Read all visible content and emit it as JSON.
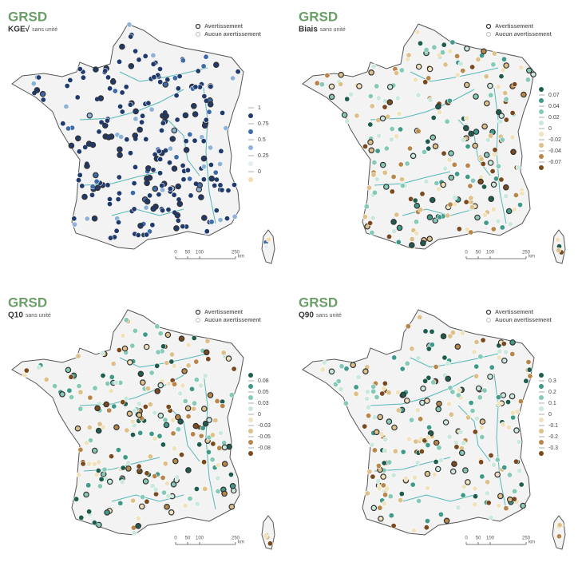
{
  "panels": [
    {
      "title": "GRSD",
      "metric": "KGE√",
      "unit": "sans unité",
      "legend": {
        "warning": "Avertissement",
        "no_warning": "Aucun avertissement"
      },
      "colorbar": {
        "ticks": [
          "1",
          "0.75",
          "0.5",
          "0.25",
          "0"
        ],
        "colors": [
          "#1f3a6b",
          "#3e6aa8",
          "#8fb3d6",
          "#e4edf2",
          "#f6dcac"
        ]
      },
      "scale": {
        "ticks": [
          "0",
          "50",
          "100",
          "250"
        ],
        "unit": "km"
      }
    },
    {
      "title": "GRSD",
      "metric": "Biais",
      "unit": "sans unité",
      "legend": {
        "warning": "Avertissement",
        "no_warning": "Aucun avertissement"
      },
      "colorbar": {
        "ticks": [
          "0.07",
          "0.04",
          "0.02",
          "0",
          "-0.02",
          "-0.04",
          "-0.07"
        ],
        "colors": [
          "#1d5c4e",
          "#3f9a8a",
          "#86c9b8",
          "#cbe8dd",
          "#f0e2bd",
          "#ddc08a",
          "#b8864b",
          "#7a4a1e"
        ]
      },
      "scale": {
        "ticks": [
          "0",
          "50",
          "100",
          "250"
        ],
        "unit": "km"
      }
    },
    {
      "title": "GRSD",
      "metric": "Q10",
      "unit": "sans unité",
      "legend": {
        "warning": "Avertissement",
        "no_warning": "Aucun avertissement"
      },
      "colorbar": {
        "ticks": [
          "0.08",
          "0.05",
          "0.03",
          "0",
          "-0.03",
          "-0.05",
          "-0.08"
        ],
        "colors": [
          "#1d5c4e",
          "#3f9a8a",
          "#86c9b8",
          "#cbe8dd",
          "#f0e2bd",
          "#ddc08a",
          "#b8864b",
          "#7a4a1e"
        ]
      },
      "scale": {
        "ticks": [
          "0",
          "50",
          "100",
          "250"
        ],
        "unit": "km"
      }
    },
    {
      "title": "GRSD",
      "metric": "Q90",
      "unit": "sans unité",
      "legend": {
        "warning": "Avertissement",
        "no_warning": "Aucun avertissement"
      },
      "colorbar": {
        "ticks": [
          "0.3",
          "0.2",
          "0.1",
          "0",
          "-0.1",
          "-0.2",
          "-0.3"
        ],
        "colors": [
          "#1d5c4e",
          "#3f9a8a",
          "#86c9b8",
          "#cbe8dd",
          "#f0e2bd",
          "#ddc08a",
          "#b8864b",
          "#7a4a1e"
        ]
      },
      "scale": {
        "ticks": [
          "0",
          "50",
          "100",
          "250"
        ],
        "unit": "km"
      }
    }
  ]
}
